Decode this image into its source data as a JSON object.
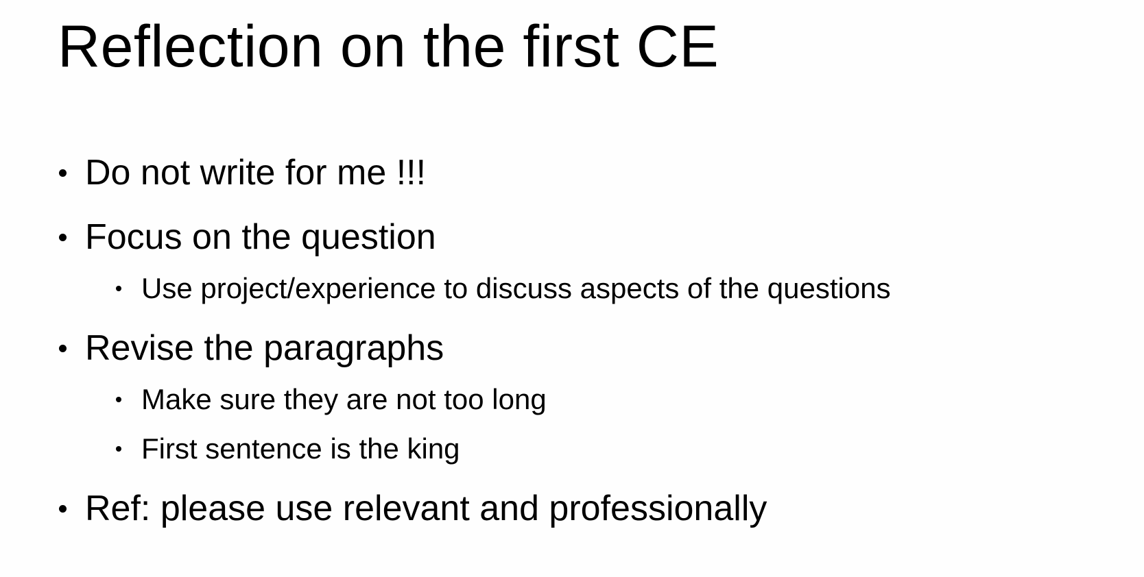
{
  "slide": {
    "title": "Reflection on the first CE",
    "bullets": [
      {
        "level": 1,
        "text": "Do not write for me !!!"
      },
      {
        "level": 1,
        "text": "Focus on the question"
      },
      {
        "level": 2,
        "text": "Use project/experience to discuss aspects of the questions"
      },
      {
        "level": 1,
        "text": "Revise the paragraphs"
      },
      {
        "level": 2,
        "text": "Make sure they are not too long"
      },
      {
        "level": 2,
        "text": "First sentence is the king"
      },
      {
        "level": 1,
        "text": "Ref: please use relevant and professionally"
      }
    ]
  }
}
